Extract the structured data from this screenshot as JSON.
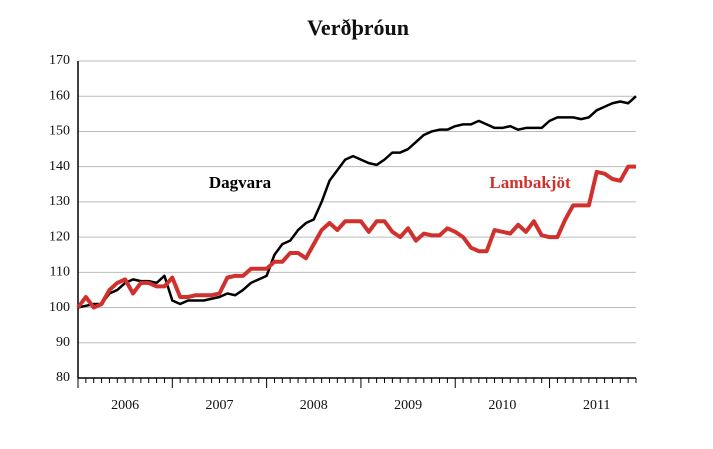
{
  "chart_data": {
    "type": "line",
    "title": "Verðþróun",
    "categories": [
      null,
      null,
      null,
      null,
      null,
      null,
      "2006",
      null,
      null,
      null,
      null,
      null,
      null,
      null,
      null,
      null,
      null,
      null,
      "2007",
      null,
      null,
      null,
      null,
      null,
      null,
      null,
      null,
      null,
      null,
      null,
      "2008",
      null,
      null,
      null,
      null,
      null,
      null,
      null,
      null,
      null,
      null,
      null,
      "2009",
      null,
      null,
      null,
      null,
      null,
      null,
      null,
      null,
      null,
      null,
      null,
      "2010",
      null,
      null,
      null,
      null,
      null,
      null,
      null,
      null,
      null,
      null,
      null,
      "2011",
      null,
      null,
      null,
      null,
      null
    ],
    "series": [
      {
        "name": "Dagvara",
        "color": "#000000",
        "values": [
          100,
          100.5,
          101,
          101,
          104,
          105,
          107,
          108,
          107.5,
          107.5,
          107,
          109,
          102,
          101,
          102,
          102,
          102,
          102.5,
          103,
          104,
          103.5,
          105,
          107,
          108,
          109,
          115,
          118,
          119,
          122,
          124,
          125,
          130,
          136,
          139,
          142,
          143,
          142,
          141,
          140.5,
          142,
          144,
          144,
          145,
          147,
          149,
          150,
          150.5,
          150.5,
          151.5,
          152,
          152,
          153,
          152,
          151,
          151,
          151.5,
          150.5,
          151,
          151,
          151,
          153,
          154,
          154,
          154,
          153.5,
          154,
          156,
          157,
          158,
          158.5,
          158,
          160
        ]
      },
      {
        "name": "Lambakjöt",
        "color": "#d0312d",
        "values": [
          100,
          103,
          100,
          101,
          105,
          107,
          108,
          104,
          107,
          107,
          106,
          106,
          108.5,
          103,
          103,
          103.5,
          103.5,
          103.5,
          104,
          108.5,
          109,
          109,
          111,
          111,
          111,
          113,
          113,
          115.5,
          115.5,
          114,
          118,
          122,
          124,
          122,
          124.5,
          124.5,
          124.5,
          121.5,
          124.5,
          124.5,
          121.5,
          120,
          122.5,
          119,
          121,
          120.5,
          120.5,
          122.5,
          121.5,
          120,
          117,
          116,
          116,
          122,
          121.5,
          121,
          123.5,
          121.5,
          124.5,
          120.5,
          120,
          120,
          125,
          129,
          129,
          129,
          138.5,
          138,
          136.5,
          136,
          140,
          140
        ]
      }
    ],
    "ylim": [
      80,
      170
    ],
    "yticks": [
      80,
      90,
      100,
      110,
      120,
      130,
      140,
      150,
      160,
      170
    ],
    "grid": true
  }
}
